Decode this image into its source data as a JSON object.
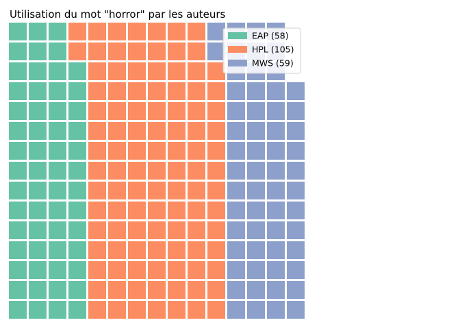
{
  "chart_data": {
    "type": "waffle",
    "title": "Utilisation du mot \"horror\" par les auteurs",
    "rows": 15,
    "columns": 15,
    "fill_order": "column-major, bottom-to-top, left-to-right",
    "series": [
      {
        "name": "EAP",
        "value": 58,
        "color": "#66c2a5",
        "legend_label": "EAP (58)"
      },
      {
        "name": "HPL",
        "value": 105,
        "color": "#fc8d62",
        "legend_label": "HPL (105)"
      },
      {
        "name": "MWS",
        "value": 59,
        "color": "#8da0cb",
        "legend_label": "MWS (59)"
      }
    ],
    "legend": {
      "position": "top-right"
    },
    "grid": false
  }
}
